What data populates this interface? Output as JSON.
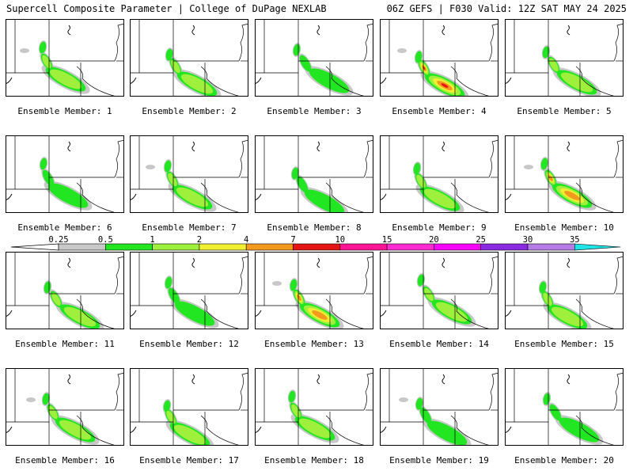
{
  "header": {
    "left": "Supercell Composite Parameter | College of DuPage NEXLAB",
    "right": "06Z GEFS | F030 Valid: 12Z SAT MAY 24 2025"
  },
  "colors": {
    "0.25": "#c8c8c8",
    "0.5": "#22e622",
    "1": "#9ef03c",
    "2": "#f0f032",
    "4": "#f39a1e",
    "7": "#e61414",
    "10": "#ff1493",
    "15": "#ff2ad2",
    "20": "#ff00ff",
    "25": "#8a2be2",
    "30": "#b57ce6",
    "35": "#1ee6e6"
  },
  "legend": {
    "ticks": [
      "0.25",
      "0.5",
      "1",
      "2",
      "4",
      "7",
      "10",
      "15",
      "20",
      "25",
      "30",
      "35"
    ]
  },
  "members": [
    {
      "label": "Ensemble Member: 1",
      "peak": 3
    },
    {
      "label": "Ensemble Member: 2",
      "peak": 3
    },
    {
      "label": "Ensemble Member: 3",
      "peak": 2
    },
    {
      "label": "Ensemble Member: 4",
      "peak": 6
    },
    {
      "label": "Ensemble Member: 5",
      "peak": 3
    },
    {
      "label": "Ensemble Member: 6",
      "peak": 2
    },
    {
      "label": "Ensemble Member: 7",
      "peak": 3
    },
    {
      "label": "Ensemble Member: 8",
      "peak": 2
    },
    {
      "label": "Ensemble Member: 9",
      "peak": 3
    },
    {
      "label": "Ensemble Member: 10",
      "peak": 5
    },
    {
      "label": "Ensemble Member: 11",
      "peak": 3
    },
    {
      "label": "Ensemble Member: 12",
      "peak": 2
    },
    {
      "label": "Ensemble Member: 13",
      "peak": 5
    },
    {
      "label": "Ensemble Member: 14",
      "peak": 3
    },
    {
      "label": "Ensemble Member: 15",
      "peak": 3
    },
    {
      "label": "Ensemble Member: 16",
      "peak": 3
    },
    {
      "label": "Ensemble Member: 17",
      "peak": 3
    },
    {
      "label": "Ensemble Member: 18",
      "peak": 3
    },
    {
      "label": "Ensemble Member: 19",
      "peak": 2
    },
    {
      "label": "Ensemble Member: 20",
      "peak": 2
    }
  ]
}
